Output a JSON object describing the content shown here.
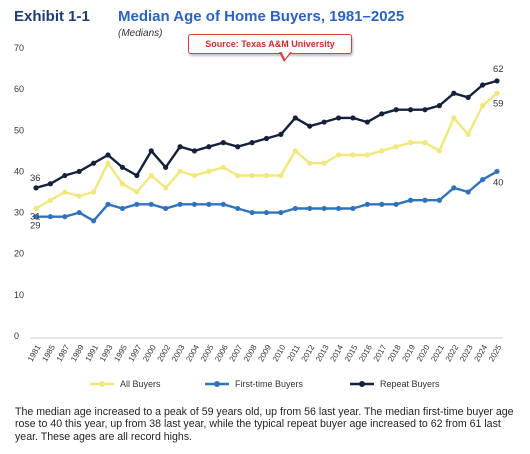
{
  "header": {
    "exhibit": "Exhibit 1-1",
    "title": "Median Age of Home Buyers, 1981–2025",
    "subtitle": "(Medians)",
    "source": "Source: Texas A&M University"
  },
  "caption": "The median age increased to a peak of 59 years old, up from 56 last year. The median first-time buyer age rose to 40 this year, up from 38 last year, while the typical repeat buyer age increased to 62 from 61 last year. These ages are all record highs.",
  "colors": {
    "all_buyers": "#f2e87a",
    "first_time": "#2f73bf",
    "repeat": "#14213d",
    "grid": "#e6e6e6"
  },
  "chart_data": {
    "type": "line",
    "title": "Median Age of Home Buyers, 1981–2025",
    "subtitle": "(Medians)",
    "xlabel": "",
    "ylabel": "",
    "ylim": [
      0,
      70
    ],
    "yticks": [
      0,
      10,
      20,
      30,
      40,
      50,
      60,
      70
    ],
    "grid": false,
    "legend": "bottom",
    "categories": [
      "1981",
      "1985",
      "1987",
      "1989",
      "1991",
      "1993",
      "1995",
      "1997",
      "2000",
      "2002",
      "2003",
      "2004",
      "2005",
      "2006",
      "2007",
      "2008",
      "2009",
      "2010",
      "2011",
      "2012",
      "2013",
      "2014",
      "2015",
      "2016",
      "2017",
      "2018",
      "2019",
      "2020",
      "2021",
      "2022",
      "2023",
      "2024",
      "2025"
    ],
    "series": [
      {
        "name": "All Buyers",
        "color_key": "all_buyers",
        "values": [
          31,
          33,
          35,
          34,
          35,
          42,
          37,
          35,
          39,
          36,
          40,
          39,
          40,
          41,
          39,
          39,
          39,
          39,
          45,
          42,
          42,
          44,
          44,
          44,
          45,
          46,
          47,
          47,
          45,
          53,
          49,
          56,
          59
        ],
        "start_label": "31",
        "end_label": "59"
      },
      {
        "name": "First-time Buyers",
        "color_key": "first_time",
        "values": [
          29,
          29,
          29,
          30,
          28,
          32,
          31,
          32,
          32,
          31,
          32,
          32,
          32,
          32,
          31,
          30,
          30,
          30,
          31,
          31,
          31,
          31,
          31,
          32,
          32,
          32,
          33,
          33,
          33,
          36,
          35,
          38,
          40
        ],
        "start_label": "29",
        "end_label": "40"
      },
      {
        "name": "Repeat Buyers",
        "color_key": "repeat",
        "values": [
          36,
          37,
          39,
          40,
          42,
          44,
          41,
          39,
          45,
          41,
          46,
          45,
          46,
          47,
          46,
          47,
          48,
          49,
          53,
          51,
          52,
          53,
          53,
          52,
          54,
          55,
          55,
          55,
          56,
          59,
          58,
          61,
          62
        ],
        "start_label": "36",
        "end_label": "62"
      }
    ]
  }
}
